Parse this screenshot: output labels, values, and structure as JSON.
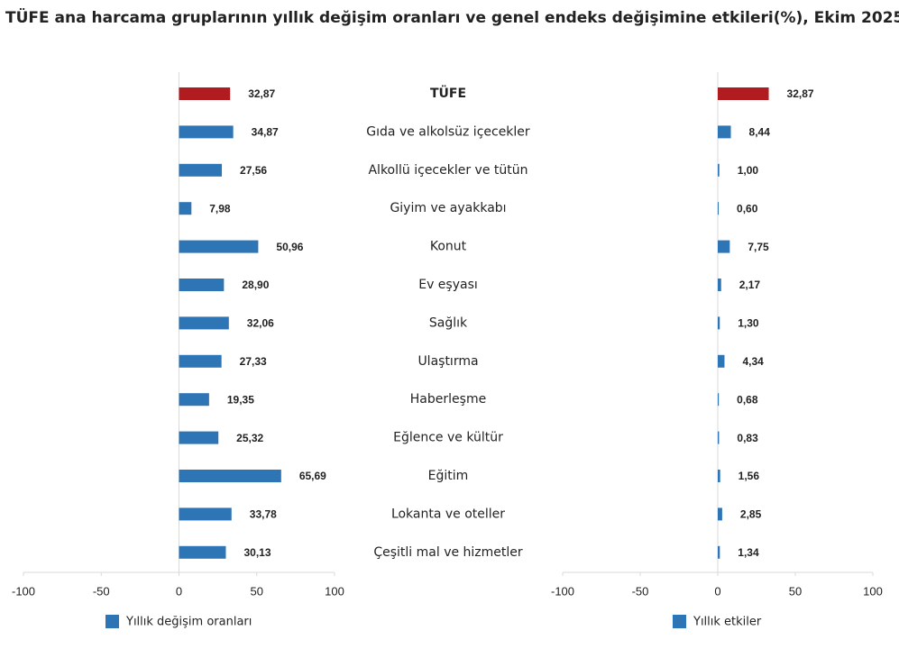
{
  "chart_data": [
    {
      "type": "bar",
      "orientation": "horizontal",
      "title": "TÜFE ana harcama gruplarının yıllık değişim oranları ve genel endeks değişimine etkileri(%), Ekim 2025",
      "categories": [
        "TÜFE",
        "Gıda ve alkolsüz içecekler",
        "Alkollü içecekler ve tütün",
        "Giyim ve ayakkabı",
        "Konut",
        "Ev eşyası",
        "Sağlık",
        "Ulaştırma",
        "Haberleşme",
        "Eğlence ve kültür",
        "Eğitim",
        "Lokanta ve oteller",
        "Çeşitli mal ve hizmetler"
      ],
      "series": [
        {
          "name": "Yıllık değişim oranları",
          "color": "#2e75b6",
          "colors": [
            "#b01c20",
            "#2e75b6",
            "#2e75b6",
            "#2e75b6",
            "#2e75b6",
            "#2e75b6",
            "#2e75b6",
            "#2e75b6",
            "#2e75b6",
            "#2e75b6",
            "#2e75b6",
            "#2e75b6",
            "#2e75b6"
          ],
          "values": [
            32.87,
            34.87,
            27.56,
            7.98,
            50.96,
            28.9,
            32.06,
            27.33,
            19.35,
            25.32,
            65.69,
            33.78,
            30.13
          ],
          "value_labels": [
            "32,87",
            "34,87",
            "27,56",
            "7,98",
            "50,96",
            "28,90",
            "32,06",
            "27,33",
            "19,35",
            "25,32",
            "65,69",
            "33,78",
            "30,13"
          ]
        }
      ],
      "xlim": [
        -100,
        100
      ],
      "xticks": [
        -100,
        -50,
        0,
        50,
        100
      ]
    },
    {
      "type": "bar",
      "orientation": "horizontal",
      "series": [
        {
          "name": "Yıllık etkiler",
          "color": "#2e75b6",
          "colors": [
            "#b01c20",
            "#2e75b6",
            "#2e75b6",
            "#2e75b6",
            "#2e75b6",
            "#2e75b6",
            "#2e75b6",
            "#2e75b6",
            "#2e75b6",
            "#2e75b6",
            "#2e75b6",
            "#2e75b6",
            "#2e75b6"
          ],
          "values": [
            32.87,
            8.44,
            1.0,
            0.6,
            7.75,
            2.17,
            1.3,
            4.34,
            0.68,
            0.83,
            1.56,
            2.85,
            1.34
          ],
          "value_labels": [
            "32,87",
            "8,44",
            "1,00",
            "0,60",
            "7,75",
            "2,17",
            "1,30",
            "4,34",
            "0,68",
            "0,83",
            "1,56",
            "2,85",
            "1,34"
          ]
        }
      ],
      "xlim": [
        -100,
        100
      ],
      "xticks": [
        -100,
        -50,
        0,
        50,
        100
      ]
    }
  ]
}
